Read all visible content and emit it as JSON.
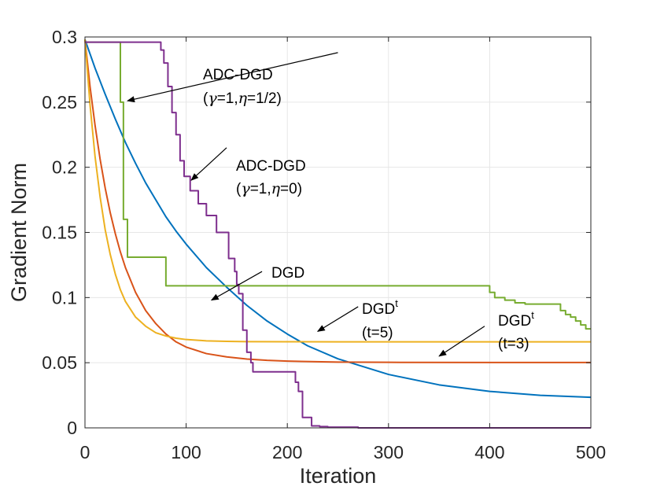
{
  "chart_data": {
    "type": "line",
    "xlabel": "Iteration",
    "ylabel": "Gradient Norm",
    "xlim": [
      0,
      500
    ],
    "ylim": [
      0,
      0.3
    ],
    "xticks": [
      0,
      100,
      200,
      300,
      400,
      500
    ],
    "xtick_labels": [
      "0",
      "100",
      "200",
      "300",
      "400",
      "500"
    ],
    "yticks": [
      0,
      0.05,
      0.1,
      0.15,
      0.2,
      0.25,
      0.3
    ],
    "ytick_labels": [
      "0",
      "0.05",
      "0.1",
      "0.15",
      "0.2",
      "0.25",
      "0.3"
    ],
    "grid": true,
    "series": [
      {
        "name": "DGD",
        "color": "#0072BD",
        "x": [
          0,
          10,
          20,
          30,
          40,
          50,
          60,
          70,
          80,
          90,
          100,
          120,
          140,
          160,
          180,
          200,
          220,
          250,
          300,
          350,
          400,
          450,
          500
        ],
        "y": [
          0.298,
          0.276,
          0.256,
          0.237,
          0.219,
          0.203,
          0.188,
          0.175,
          0.162,
          0.151,
          0.141,
          0.123,
          0.108,
          0.094,
          0.082,
          0.072,
          0.063,
          0.053,
          0.041,
          0.033,
          0.028,
          0.025,
          0.0235
        ]
      },
      {
        "name": "DGD^t (t=3)",
        "color": "#D95319",
        "x": [
          0,
          5,
          10,
          15,
          20,
          25,
          30,
          35,
          40,
          50,
          60,
          70,
          80,
          90,
          100,
          120,
          140,
          160,
          180,
          200,
          250,
          300,
          400,
          500
        ],
        "y": [
          0.298,
          0.262,
          0.232,
          0.206,
          0.184,
          0.165,
          0.149,
          0.135,
          0.123,
          0.104,
          0.09,
          0.08,
          0.072,
          0.066,
          0.062,
          0.057,
          0.0545,
          0.0528,
          0.0518,
          0.0512,
          0.0505,
          0.0503,
          0.0502,
          0.0502
        ]
      },
      {
        "name": "DGD^t (t=5)",
        "color": "#EDB120",
        "x": [
          0,
          5,
          10,
          15,
          20,
          25,
          30,
          35,
          40,
          50,
          60,
          70,
          80,
          90,
          100,
          120,
          140,
          160,
          200,
          250,
          300,
          400,
          500
        ],
        "y": [
          0.298,
          0.248,
          0.208,
          0.177,
          0.152,
          0.133,
          0.118,
          0.106,
          0.097,
          0.085,
          0.078,
          0.073,
          0.0705,
          0.0688,
          0.0678,
          0.0668,
          0.0664,
          0.0662,
          0.0661,
          0.066,
          0.066,
          0.066,
          0.066
        ]
      },
      {
        "name": "ADC-DGD (γ=1,η=1/2)",
        "color": "#77AC30",
        "x": [
          0,
          35,
          35,
          38,
          38,
          42,
          42,
          80,
          80,
          400,
          400,
          405,
          405,
          415,
          415,
          420,
          420,
          425,
          425,
          435,
          435,
          470,
          470,
          475,
          475,
          480,
          480,
          485,
          485,
          490,
          490,
          495,
          495,
          500
        ],
        "y": [
          0.296,
          0.296,
          0.25,
          0.25,
          0.16,
          0.16,
          0.131,
          0.131,
          0.109,
          0.109,
          0.104,
          0.104,
          0.1,
          0.1,
          0.098,
          0.098,
          0.098,
          0.098,
          0.096,
          0.096,
          0.095,
          0.095,
          0.09,
          0.09,
          0.087,
          0.087,
          0.085,
          0.085,
          0.082,
          0.082,
          0.079,
          0.079,
          0.076,
          0.076
        ]
      },
      {
        "name": "ADC-DGD (γ=1,η=0)",
        "color": "#7E2F8E",
        "x": [
          0,
          75,
          75,
          78,
          78,
          82,
          82,
          86,
          86,
          90,
          90,
          94,
          94,
          98,
          98,
          104,
          104,
          112,
          112,
          120,
          120,
          130,
          130,
          142,
          142,
          148,
          148,
          150,
          150,
          152,
          152,
          156,
          156,
          160,
          160,
          164,
          164,
          166,
          166,
          170,
          170,
          178,
          178,
          208,
          208,
          211,
          211,
          215,
          215,
          224,
          224,
          232,
          232,
          240,
          240,
          270,
          270,
          500
        ],
        "y": [
          0.296,
          0.296,
          0.29,
          0.29,
          0.28,
          0.28,
          0.262,
          0.262,
          0.242,
          0.242,
          0.225,
          0.225,
          0.205,
          0.205,
          0.193,
          0.193,
          0.182,
          0.182,
          0.172,
          0.172,
          0.163,
          0.163,
          0.15,
          0.15,
          0.13,
          0.13,
          0.12,
          0.12,
          0.11,
          0.11,
          0.103,
          0.103,
          0.075,
          0.075,
          0.058,
          0.058,
          0.05,
          0.05,
          0.043,
          0.043,
          0.043,
          0.043,
          0.043,
          0.043,
          0.035,
          0.035,
          0.028,
          0.028,
          0.008,
          0.008,
          0.0015,
          0.0015,
          0.001,
          0.001,
          0.0005,
          0.0005,
          0.0,
          0.0
        ]
      }
    ],
    "annotations": [
      {
        "id": "adc-half",
        "line1": "ADC-DGD",
        "line2_pre": "(",
        "sym1": "γ",
        "mid": "=1,",
        "sym2": "η",
        "line2_post": "=1/2)",
        "arrow_from": [
          250,
          0.288
        ],
        "arrow_to": [
          42,
          0.251
        ]
      },
      {
        "id": "adc-zero",
        "line1": "ADC-DGD",
        "line2_pre": "(",
        "sym1": "γ",
        "mid": "=1,",
        "sym2": "η",
        "line2_post": "=0)",
        "arrow_from": [
          140,
          0.215
        ],
        "arrow_to": [
          105,
          0.19
        ]
      },
      {
        "id": "dgd",
        "line1": "DGD",
        "arrow_from": [
          175,
          0.12
        ],
        "arrow_to": [
          125,
          0.098
        ]
      },
      {
        "id": "dgdt5",
        "line1": "DGD",
        "sup": "t",
        "line2": "(t=5)",
        "arrow_from": [
          270,
          0.093
        ],
        "arrow_to": [
          230,
          0.074
        ]
      },
      {
        "id": "dgdt3",
        "line1": "DGD",
        "sup": "t",
        "line2": "(t=3)",
        "arrow_from": [
          395,
          0.078
        ],
        "arrow_to": [
          350,
          0.055
        ]
      }
    ]
  }
}
